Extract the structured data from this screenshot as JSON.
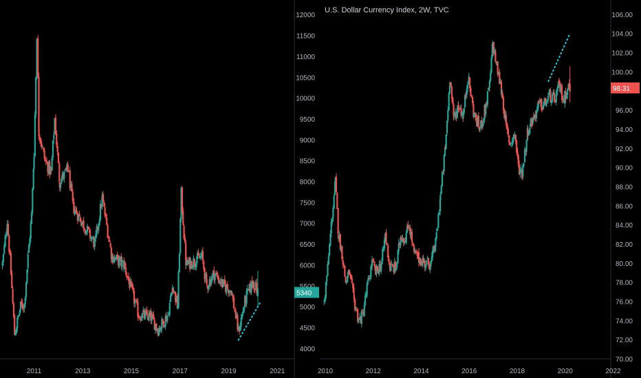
{
  "colors": {
    "background": "#000000",
    "up": "#26a69a",
    "down": "#ef5350",
    "axis_text": "#b2b5be",
    "divider": "#2a2e39",
    "trend": "#26c6da"
  },
  "chart_data": [
    {
      "type": "candlestick",
      "title": "",
      "ylim": [
        3750,
        12350
      ],
      "xlim": [
        2009.6,
        2021.7
      ],
      "y_ticks": [
        "12000",
        "11500",
        "11000",
        "10500",
        "10000",
        "9500",
        "9000",
        "8500",
        "8000",
        "7500",
        "7000",
        "6500",
        "6000",
        "5500",
        "5000",
        "4500",
        "4000"
      ],
      "x_ticks": [
        {
          "x": 2011,
          "label": "2011"
        },
        {
          "x": 2013,
          "label": "2013"
        },
        {
          "x": 2015,
          "label": "2015"
        },
        {
          "x": 2017,
          "label": "2017"
        },
        {
          "x": 2019,
          "label": "2019"
        },
        {
          "x": 2021,
          "label": "2021"
        }
      ],
      "last_price": {
        "value": 5340,
        "label": "5340",
        "color": "#26a69a"
      },
      "trendline": {
        "style": "dotted",
        "color": "#26c6da",
        "points": [
          [
            2019.4,
            4200
          ],
          [
            2020.3,
            5100
          ]
        ]
      },
      "series": [
        {
          "t": 2009.7,
          "v": 6000
        },
        {
          "t": 2009.9,
          "v": 7050
        },
        {
          "t": 2010.05,
          "v": 5800
        },
        {
          "t": 2010.2,
          "v": 4350
        },
        {
          "t": 2010.45,
          "v": 5000
        },
        {
          "t": 2010.6,
          "v": 5050
        },
        {
          "t": 2010.75,
          "v": 6200
        },
        {
          "t": 2010.9,
          "v": 7200
        },
        {
          "t": 2011.0,
          "v": 8700
        },
        {
          "t": 2011.12,
          "v": 11550
        },
        {
          "t": 2011.2,
          "v": 9200
        },
        {
          "t": 2011.45,
          "v": 8500
        },
        {
          "t": 2011.7,
          "v": 8200
        },
        {
          "t": 2011.85,
          "v": 9500
        },
        {
          "t": 2012.05,
          "v": 8000
        },
        {
          "t": 2012.4,
          "v": 8300
        },
        {
          "t": 2012.6,
          "v": 7400
        },
        {
          "t": 2013.0,
          "v": 7000
        },
        {
          "t": 2013.5,
          "v": 6500
        },
        {
          "t": 2013.8,
          "v": 7600
        },
        {
          "t": 2014.2,
          "v": 6200
        },
        {
          "t": 2014.7,
          "v": 6000
        },
        {
          "t": 2015.0,
          "v": 5400
        },
        {
          "t": 2015.3,
          "v": 4800
        },
        {
          "t": 2015.8,
          "v": 4750
        },
        {
          "t": 2016.1,
          "v": 4450
        },
        {
          "t": 2016.5,
          "v": 4800
        },
        {
          "t": 2016.7,
          "v": 5500
        },
        {
          "t": 2016.9,
          "v": 5000
        },
        {
          "t": 2017.05,
          "v": 7700
        },
        {
          "t": 2017.25,
          "v": 6000
        },
        {
          "t": 2017.6,
          "v": 6100
        },
        {
          "t": 2017.9,
          "v": 6200
        },
        {
          "t": 2018.1,
          "v": 5500
        },
        {
          "t": 2018.4,
          "v": 5800
        },
        {
          "t": 2018.8,
          "v": 5500
        },
        {
          "t": 2019.1,
          "v": 5400
        },
        {
          "t": 2019.4,
          "v": 4400
        },
        {
          "t": 2019.7,
          "v": 5200
        },
        {
          "t": 2020.0,
          "v": 5600
        },
        {
          "t": 2020.2,
          "v": 5340
        }
      ]
    },
    {
      "type": "candlestick",
      "title": "U.S. Dollar Currency Index, 2W, TVC",
      "ylim": [
        70,
        107.5
      ],
      "xlim": [
        2009.8,
        2021.9
      ],
      "y_ticks": [
        "106.00",
        "104.00",
        "102.00",
        "100.00",
        "98.00",
        "96.00",
        "94.00",
        "92.00",
        "90.00",
        "88.00",
        "86.00",
        "84.00",
        "82.00",
        "80.00",
        "78.00",
        "76.00",
        "74.00",
        "72.00",
        "70.00"
      ],
      "x_ticks": [
        {
          "x": 2010,
          "label": "2010"
        },
        {
          "x": 2012,
          "label": "2012"
        },
        {
          "x": 2014,
          "label": "2014"
        },
        {
          "x": 2016,
          "label": "2016"
        },
        {
          "x": 2018,
          "label": "2018"
        },
        {
          "x": 2020,
          "label": "2020"
        },
        {
          "x": 2022,
          "label": "2022"
        }
      ],
      "last_price": {
        "value": 98.31,
        "label": "98.31",
        "color": "#ef5350"
      },
      "trendline": {
        "style": "dotted",
        "color": "#26c6da",
        "points": [
          [
            2019.3,
            99.0
          ],
          [
            2020.2,
            104.0
          ]
        ]
      },
      "series": [
        {
          "t": 2009.95,
          "v": 76.0
        },
        {
          "t": 2010.1,
          "v": 79.5
        },
        {
          "t": 2010.25,
          "v": 84.0
        },
        {
          "t": 2010.42,
          "v": 88.5
        },
        {
          "t": 2010.55,
          "v": 83.0
        },
        {
          "t": 2010.7,
          "v": 81.0
        },
        {
          "t": 2010.85,
          "v": 78.0
        },
        {
          "t": 2011.0,
          "v": 79.0
        },
        {
          "t": 2011.2,
          "v": 76.0
        },
        {
          "t": 2011.4,
          "v": 74.0
        },
        {
          "t": 2011.55,
          "v": 74.5
        },
        {
          "t": 2011.75,
          "v": 77.5
        },
        {
          "t": 2011.95,
          "v": 80.0
        },
        {
          "t": 2012.1,
          "v": 79.0
        },
        {
          "t": 2012.35,
          "v": 80.0
        },
        {
          "t": 2012.5,
          "v": 83.0
        },
        {
          "t": 2012.7,
          "v": 79.5
        },
        {
          "t": 2012.95,
          "v": 79.5
        },
        {
          "t": 2013.15,
          "v": 83.0
        },
        {
          "t": 2013.3,
          "v": 82.5
        },
        {
          "t": 2013.5,
          "v": 84.0
        },
        {
          "t": 2013.7,
          "v": 81.0
        },
        {
          "t": 2013.9,
          "v": 80.5
        },
        {
          "t": 2014.15,
          "v": 80.0
        },
        {
          "t": 2014.4,
          "v": 80.0
        },
        {
          "t": 2014.6,
          "v": 82.0
        },
        {
          "t": 2014.8,
          "v": 87.0
        },
        {
          "t": 2015.0,
          "v": 92.0
        },
        {
          "t": 2015.2,
          "v": 99.5
        },
        {
          "t": 2015.35,
          "v": 95.0
        },
        {
          "t": 2015.55,
          "v": 96.5
        },
        {
          "t": 2015.75,
          "v": 95.5
        },
        {
          "t": 2015.95,
          "v": 99.5
        },
        {
          "t": 2016.2,
          "v": 95.5
        },
        {
          "t": 2016.45,
          "v": 94.0
        },
        {
          "t": 2016.65,
          "v": 96.0
        },
        {
          "t": 2016.85,
          "v": 98.5
        },
        {
          "t": 2016.98,
          "v": 103.0
        },
        {
          "t": 2017.15,
          "v": 100.5
        },
        {
          "t": 2017.35,
          "v": 98.0
        },
        {
          "t": 2017.55,
          "v": 94.0
        },
        {
          "t": 2017.7,
          "v": 92.5
        },
        {
          "t": 2017.9,
          "v": 93.5
        },
        {
          "t": 2018.05,
          "v": 90.0
        },
        {
          "t": 2018.2,
          "v": 89.5
        },
        {
          "t": 2018.45,
          "v": 94.0
        },
        {
          "t": 2018.65,
          "v": 95.0
        },
        {
          "t": 2018.9,
          "v": 96.5
        },
        {
          "t": 2019.1,
          "v": 96.5
        },
        {
          "t": 2019.35,
          "v": 97.5
        },
        {
          "t": 2019.55,
          "v": 97.0
        },
        {
          "t": 2019.75,
          "v": 98.5
        },
        {
          "t": 2019.95,
          "v": 97.0
        },
        {
          "t": 2020.1,
          "v": 98.5
        },
        {
          "t": 2020.2,
          "v": 98.31
        }
      ]
    }
  ]
}
